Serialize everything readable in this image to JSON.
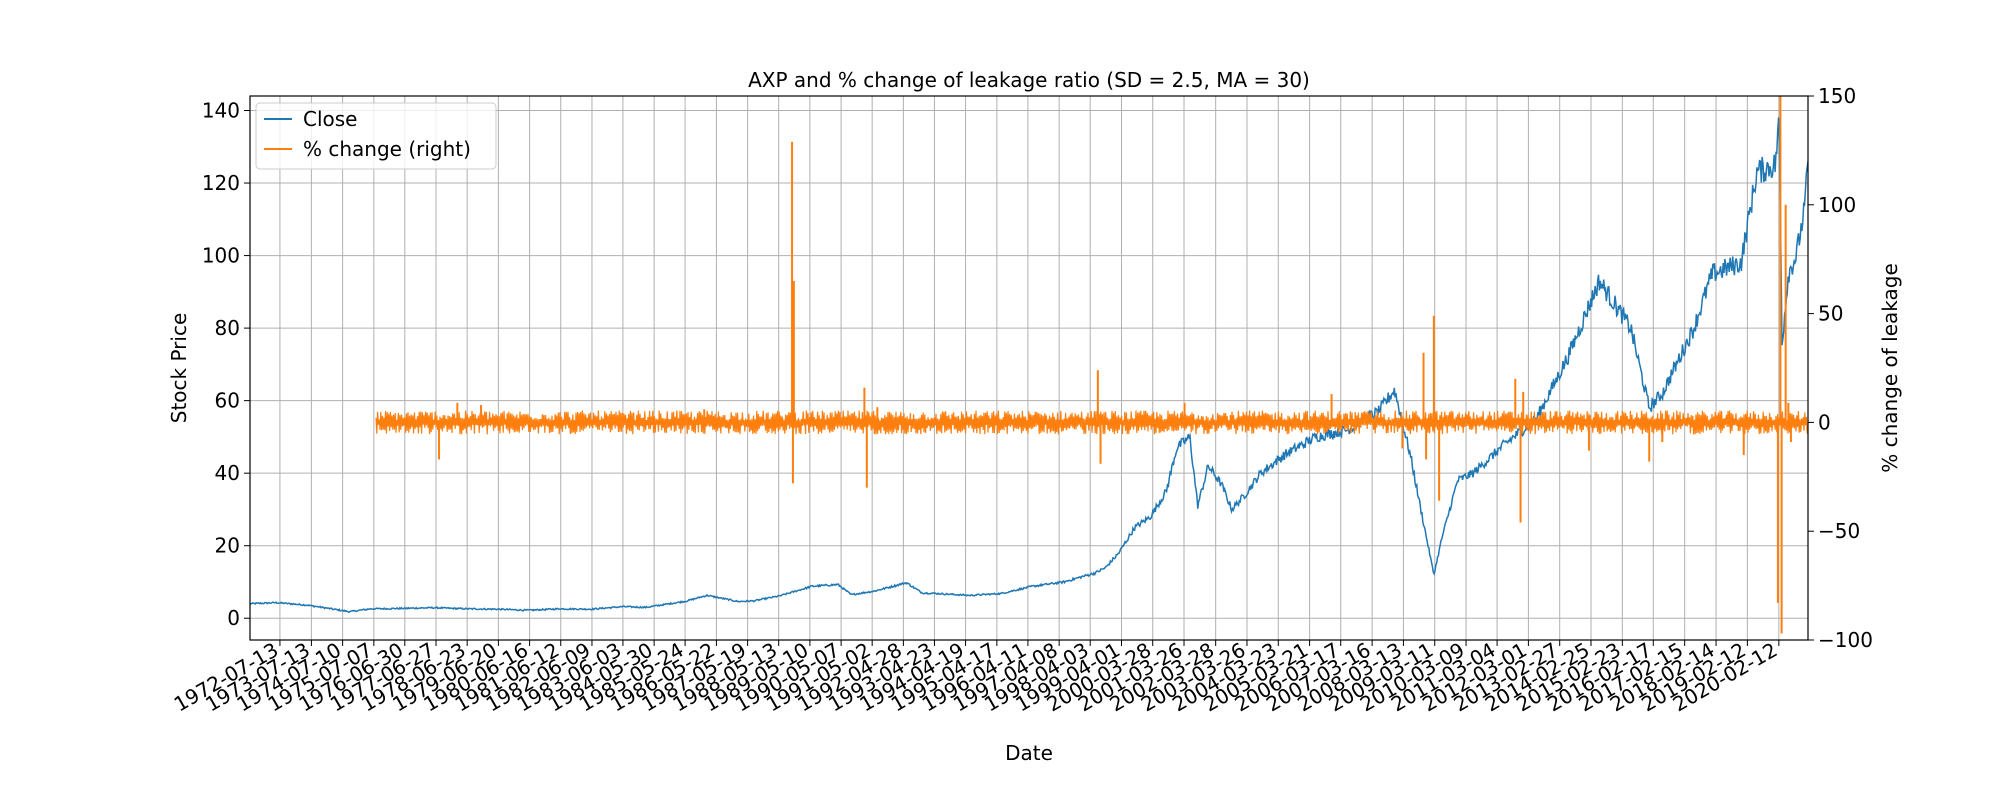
{
  "chart_data": {
    "type": "line",
    "title": "AXP and % change of leakage ratio (SD = 2.5, MA = 30)",
    "xlabel": "Date",
    "ylabel": "Stock Price",
    "y2label": "% change of leakage",
    "grid": true,
    "legend_position": "top-left",
    "xlim": [
      "1971-08-01",
      "2021-01-15"
    ],
    "ylim": [
      -6,
      144
    ],
    "y2lim": [
      -100,
      150
    ],
    "yticks": [
      0,
      20,
      40,
      60,
      80,
      100,
      120,
      140
    ],
    "y2ticks": [
      -100,
      -50,
      0,
      50,
      100,
      150
    ],
    "y2tick_labels": [
      "−100",
      "−50",
      "0",
      "50",
      "100",
      "150"
    ],
    "xticks": [
      "1972-07-13",
      "1973-07-13",
      "1974-07-10",
      "1975-07-07",
      "1976-06-30",
      "1977-06-27",
      "1978-06-23",
      "1979-06-20",
      "1980-06-16",
      "1981-06-12",
      "1982-06-09",
      "1983-06-03",
      "1984-05-30",
      "1985-05-24",
      "1986-05-22",
      "1987-05-19",
      "1988-05-13",
      "1989-05-10",
      "1990-05-07",
      "1991-05-02",
      "1992-04-28",
      "1993-04-23",
      "1994-04-19",
      "1995-04-17",
      "1996-04-11",
      "1997-04-08",
      "1998-04-03",
      "1999-04-01",
      "2000-03-28",
      "2001-03-26",
      "2002-03-28",
      "2003-03-26",
      "2004-03-23",
      "2005-03-21",
      "2006-03-17",
      "2007-03-16",
      "2008-03-13",
      "2009-03-11",
      "2010-03-09",
      "2011-03-04",
      "2012-03-01",
      "2013-02-27",
      "2014-02-25",
      "2015-02-23",
      "2016-02-17",
      "2017-02-15",
      "2018-02-14",
      "2019-02-12",
      "2020-02-12"
    ],
    "series": [
      {
        "name": "Close",
        "color": "#1f77b4",
        "axis": "left",
        "points": [
          [
            "1971-08-01",
            4.0
          ],
          [
            "1972-06-01",
            4.3
          ],
          [
            "1973-06-01",
            3.6
          ],
          [
            "1974-10-01",
            1.8
          ],
          [
            "1975-06-01",
            2.6
          ],
          [
            "1976-06-01",
            2.7
          ],
          [
            "1977-06-01",
            2.9
          ],
          [
            "1978-06-01",
            2.6
          ],
          [
            "1979-06-01",
            2.5
          ],
          [
            "1980-06-01",
            2.2
          ],
          [
            "1981-06-01",
            2.6
          ],
          [
            "1982-06-01",
            2.5
          ],
          [
            "1983-06-01",
            3.2
          ],
          [
            "1984-03-01",
            3.0
          ],
          [
            "1985-06-01",
            4.7
          ],
          [
            "1986-02-01",
            6.3
          ],
          [
            "1987-02-01",
            4.6
          ],
          [
            "1987-08-01",
            4.8
          ],
          [
            "1988-06-01",
            6.2
          ],
          [
            "1989-06-01",
            8.8
          ],
          [
            "1990-04-01",
            9.3
          ],
          [
            "1990-09-01",
            6.5
          ],
          [
            "1991-06-01",
            7.5
          ],
          [
            "1992-06-01",
            9.8
          ],
          [
            "1992-12-01",
            7.0
          ],
          [
            "1993-06-01",
            6.8
          ],
          [
            "1994-06-01",
            6.3
          ],
          [
            "1995-06-01",
            6.8
          ],
          [
            "1996-06-01",
            8.8
          ],
          [
            "1997-06-01",
            10.0
          ],
          [
            "1998-06-01",
            12.5
          ],
          [
            "1998-10-01",
            14.0
          ],
          [
            "1999-03-01",
            18.0
          ],
          [
            "1999-09-01",
            25.0
          ],
          [
            "2000-03-01",
            28.0
          ],
          [
            "2000-09-01",
            35.0
          ],
          [
            "2001-01-01",
            47.0
          ],
          [
            "2001-06-01",
            50.0
          ],
          [
            "2001-09-01",
            31.0
          ],
          [
            "2002-01-01",
            42.0
          ],
          [
            "2002-06-01",
            37.0
          ],
          [
            "2002-10-01",
            30.0
          ],
          [
            "2003-03-01",
            34.0
          ],
          [
            "2003-09-01",
            40.0
          ],
          [
            "2004-06-01",
            45.0
          ],
          [
            "2005-06-01",
            50.0
          ],
          [
            "2006-06-01",
            52.0
          ],
          [
            "2007-06-01",
            57.0
          ],
          [
            "2007-12-01",
            63.0
          ],
          [
            "2008-06-01",
            45.0
          ],
          [
            "2008-10-01",
            30.0
          ],
          [
            "2009-03-01",
            12.0
          ],
          [
            "2009-06-01",
            22.0
          ],
          [
            "2009-12-01",
            38.0
          ],
          [
            "2010-06-01",
            40.0
          ],
          [
            "2011-06-01",
            48.0
          ],
          [
            "2012-06-01",
            55.0
          ],
          [
            "2013-06-01",
            72.0
          ],
          [
            "2014-06-01",
            93.0
          ],
          [
            "2015-06-01",
            80.0
          ],
          [
            "2016-01-01",
            58.0
          ],
          [
            "2016-06-01",
            62.0
          ],
          [
            "2017-06-01",
            80.0
          ],
          [
            "2018-01-01",
            95.0
          ],
          [
            "2018-12-01",
            98.0
          ],
          [
            "2019-06-01",
            123.0
          ],
          [
            "2020-01-01",
            125.0
          ],
          [
            "2020-02-15",
            137.0
          ],
          [
            "2020-03-20",
            76.0
          ],
          [
            "2020-06-01",
            95.0
          ],
          [
            "2020-09-01",
            100.0
          ],
          [
            "2020-12-01",
            112.0
          ],
          [
            "2021-01-15",
            125.0
          ]
        ]
      },
      {
        "name": "% change (right)",
        "color": "#ff7f0e",
        "axis": "right",
        "start": "1975-08-01",
        "end": "2021-01-15",
        "spikes": [
          [
            "1977-08-01",
            -17
          ],
          [
            "1978-03-01",
            9
          ],
          [
            "1978-12-01",
            8
          ],
          [
            "1986-01-01",
            6
          ],
          [
            "1988-10-15",
            129
          ],
          [
            "1988-10-25",
            -28
          ],
          [
            "1988-11-05",
            65
          ],
          [
            "1991-02-01",
            16
          ],
          [
            "1991-03-01",
            -30
          ],
          [
            "1991-07-01",
            7
          ],
          [
            "1998-07-01",
            24
          ],
          [
            "1998-08-01",
            -19
          ],
          [
            "2001-04-01",
            9
          ],
          [
            "2005-12-01",
            13
          ],
          [
            "2008-03-01",
            -12
          ],
          [
            "2008-11-01",
            32
          ],
          [
            "2008-12-01",
            -17
          ],
          [
            "2009-03-01",
            49
          ],
          [
            "2009-05-01",
            -36
          ],
          [
            "2011-10-01",
            20
          ],
          [
            "2011-12-01",
            -46
          ],
          [
            "2012-01-01",
            14
          ],
          [
            "2014-02-01",
            -13
          ],
          [
            "2016-01-01",
            -18
          ],
          [
            "2016-06-01",
            -9
          ],
          [
            "2019-01-01",
            -15
          ],
          [
            "2020-02-01",
            -83
          ],
          [
            "2020-03-01",
            150
          ],
          [
            "2020-03-15",
            -97
          ],
          [
            "2020-05-01",
            100
          ],
          [
            "2020-06-01",
            9
          ],
          [
            "2020-07-01",
            -9
          ]
        ]
      }
    ]
  }
}
